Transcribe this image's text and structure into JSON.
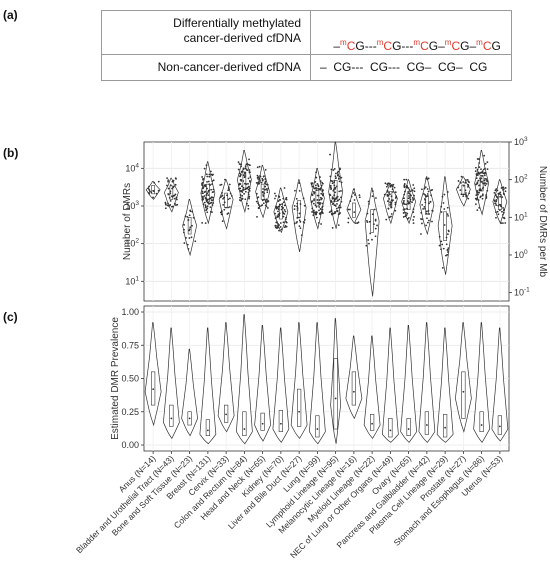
{
  "panel_labels": {
    "a": "(a)",
    "b": "(b)",
    "c": "(c)"
  },
  "table": {
    "row1_label_line1": "Differentially methylated",
    "row1_label_line2": "cancer-derived cfDNA",
    "row2_label": "Non-cancer-derived cfDNA",
    "meth_mark": "m",
    "cg": "CG",
    "c": "C",
    "g": "G",
    "dash_short": "–",
    "dash_long": "---",
    "row2_seq": "–  CG---  CG---  CG–  CG–  CG"
  },
  "chart_data": [
    {
      "type": "violin",
      "title": "",
      "ylabel": "Number of DMRs",
      "ylabel_right": "Number of DMRs per Mb",
      "yscale": "log",
      "ylim": [
        3,
        50000
      ],
      "yticks": [
        "10^1",
        "10^2",
        "10^3",
        "10^4"
      ],
      "yticks_right": [
        "10^-1",
        "10^0",
        "10^1",
        "10^2",
        "10^3"
      ],
      "grid": true,
      "categories": [
        "Anus (N=14)",
        "Bladder and Urothelial Tract (N=43)",
        "Bone and Soft Tissue (N=23)",
        "Breast (N=131)",
        "Cervix (N=33)",
        "Colon and Rectum (N=84)",
        "Head and Neck (N=65)",
        "Kidney (N=70)",
        "Liver and Bile Duct (N=27)",
        "Lung (N=99)",
        "Lymphoid Lineage (N=95)",
        "Melanocytic Lineage (N=16)",
        "Myeloid Lineage (N=22)",
        "NEC of Lung or Other Organs (N=49)",
        "Ovary (N=65)",
        "Pancreas and Gallbladder (N=42)",
        "Plasma Cell Lineage (N=29)",
        "Prostate (N=27)",
        "Stomach and Esophagus (N=86)",
        "Uterus (N=53)"
      ],
      "medians": [
        2700,
        2300,
        300,
        2200,
        1500,
        5000,
        2400,
        700,
        900,
        1600,
        2400,
        800,
        400,
        1600,
        1300,
        1100,
        300,
        2800,
        4000,
        1300
      ],
      "q1": [
        2100,
        1500,
        180,
        1300,
        900,
        2800,
        1500,
        450,
        500,
        1000,
        1300,
        500,
        200,
        1000,
        800,
        600,
        120,
        2000,
        2500,
        800
      ],
      "q3": [
        3500,
        3400,
        500,
        3800,
        2200,
        8000,
        3800,
        1100,
        1400,
        2600,
        4800,
        1200,
        800,
        2400,
        2200,
        1900,
        700,
        3600,
        6500,
        2000
      ],
      "mins": [
        1500,
        700,
        50,
        350,
        250,
        700,
        500,
        200,
        60,
        250,
        250,
        350,
        4,
        350,
        350,
        180,
        15,
        1000,
        600,
        350
      ],
      "maxs": [
        4500,
        5500,
        1500,
        15000,
        5000,
        30000,
        12000,
        3000,
        5000,
        10000,
        50000,
        2800,
        3000,
        4000,
        5000,
        6000,
        6000,
        6000,
        30000,
        5000
      ]
    },
    {
      "type": "violin",
      "title": "",
      "ylabel": "Estimated DMR Prevalence",
      "ylim": [
        0,
        1
      ],
      "yticks": [
        "0.00",
        "0.25",
        "0.50",
        "0.75",
        "1.00"
      ],
      "grid": true,
      "categories": [
        "Anus (N=14)",
        "Bladder and Urothelial Tract (N=43)",
        "Bone and Soft Tissue (N=23)",
        "Breast (N=131)",
        "Cervix (N=33)",
        "Colon and Rectum (N=84)",
        "Head and Neck (N=65)",
        "Kidney (N=70)",
        "Liver and Bile Duct (N=27)",
        "Lung (N=99)",
        "Lymphoid Lineage (N=95)",
        "Melanocytic Lineage (N=16)",
        "Myeloid Lineage (N=22)",
        "NEC of Lung or Other Organs (N=49)",
        "Ovary (N=65)",
        "Pancreas and Gallbladder (N=42)",
        "Plasma Cell Lineage (N=29)",
        "Prostate (N=27)",
        "Stomach and Esophagus (N=86)",
        "Uterus (N=53)"
      ],
      "medians": [
        0.42,
        0.2,
        0.2,
        0.11,
        0.23,
        0.12,
        0.16,
        0.16,
        0.25,
        0.12,
        0.35,
        0.4,
        0.16,
        0.11,
        0.12,
        0.15,
        0.13,
        0.4,
        0.15,
        0.14
      ],
      "q1": [
        0.3,
        0.14,
        0.15,
        0.07,
        0.17,
        0.07,
        0.11,
        0.1,
        0.14,
        0.06,
        0.12,
        0.3,
        0.11,
        0.06,
        0.07,
        0.08,
        0.06,
        0.2,
        0.1,
        0.08
      ],
      "q3": [
        0.55,
        0.3,
        0.25,
        0.19,
        0.3,
        0.25,
        0.24,
        0.26,
        0.42,
        0.22,
        0.65,
        0.55,
        0.23,
        0.2,
        0.2,
        0.25,
        0.23,
        0.55,
        0.25,
        0.22
      ],
      "mins": [
        0.15,
        0.05,
        0.07,
        0.01,
        0.1,
        0.01,
        0.03,
        0.02,
        0.05,
        0.01,
        0.01,
        0.2,
        0.05,
        0.02,
        0.02,
        0.02,
        0.02,
        0.1,
        0.02,
        0.03
      ],
      "maxs": [
        0.92,
        0.88,
        0.72,
        0.88,
        0.92,
        0.98,
        0.9,
        0.88,
        0.92,
        0.92,
        0.95,
        0.82,
        0.82,
        0.88,
        0.9,
        0.92,
        0.88,
        0.92,
        0.92,
        0.88
      ],
      "modes": [
        0.4,
        0.17,
        0.2,
        0.08,
        0.22,
        0.1,
        0.15,
        0.12,
        0.15,
        0.1,
        0.3,
        0.35,
        0.15,
        0.08,
        0.1,
        0.1,
        0.08,
        0.35,
        0.12,
        0.12
      ]
    }
  ]
}
